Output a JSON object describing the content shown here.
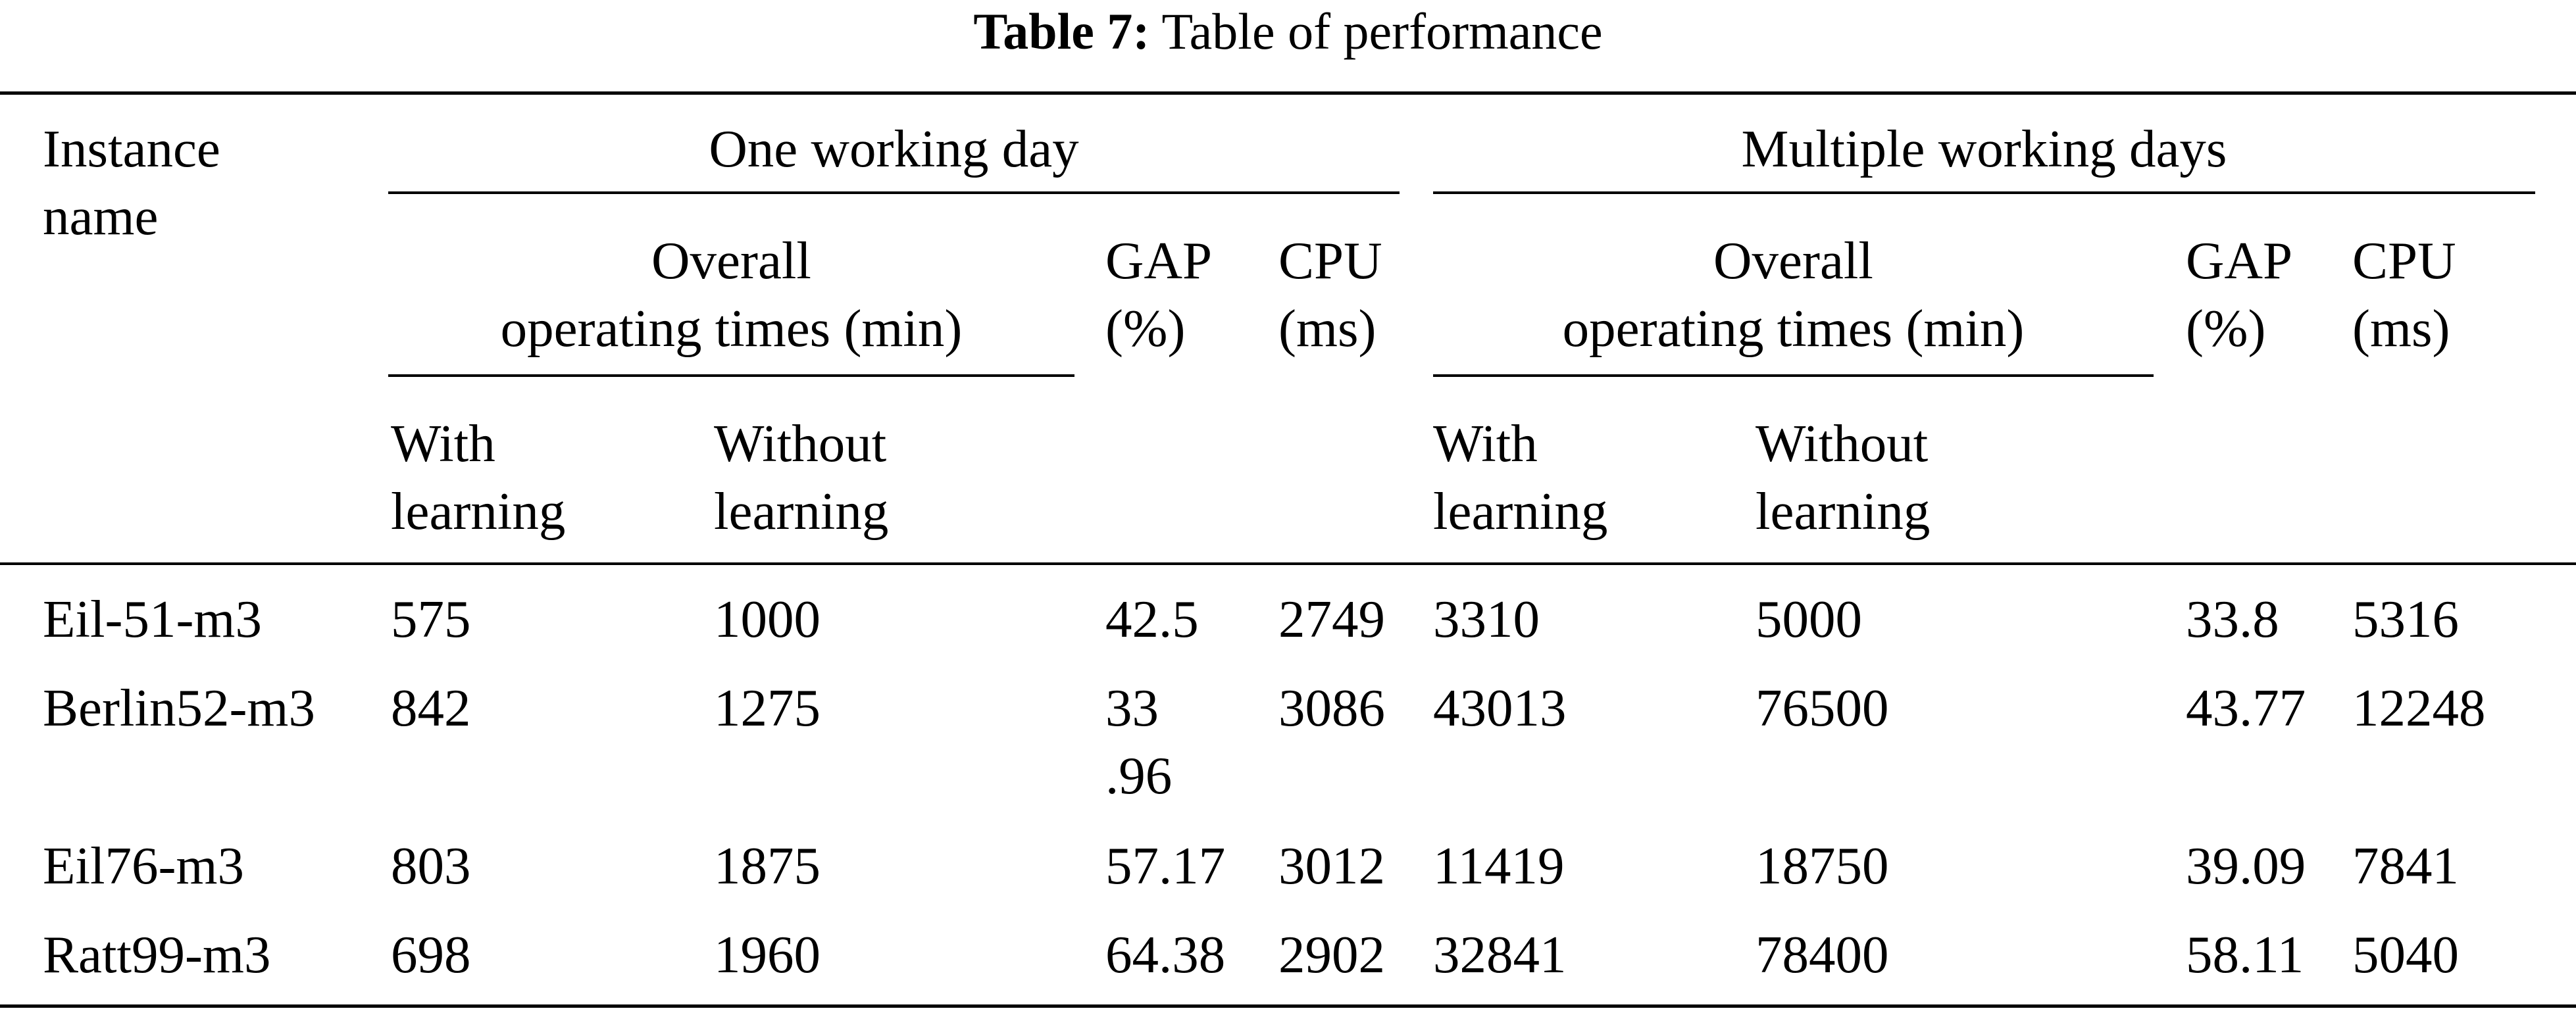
{
  "caption": {
    "label": "Table 7:",
    "text": "Table of performance"
  },
  "header": {
    "instance_name": [
      "Instance",
      "name"
    ],
    "group_one": "One working day",
    "group_multi": "Multiple working days",
    "overall": [
      "Overall",
      "operating times (min)"
    ],
    "gap": [
      "GAP",
      "(%)"
    ],
    "cpu": [
      "CPU",
      "(ms)"
    ],
    "with_learning": [
      "With",
      "learning"
    ],
    "without_learning": [
      "Without",
      "learning"
    ]
  },
  "rows": [
    {
      "name": "Eil-51-m3",
      "one": {
        "with": "575",
        "without": "1000",
        "gap": [
          "42.5"
        ],
        "cpu": "2749"
      },
      "multi": {
        "with": "3310",
        "without": "5000",
        "gap": "33.8",
        "cpu": "5316"
      }
    },
    {
      "name": "Berlin52-m3",
      "one": {
        "with": "842",
        "without": "1275",
        "gap": [
          "33",
          ".96"
        ],
        "cpu": "3086"
      },
      "multi": {
        "with": "43013",
        "without": "76500",
        "gap": "43.77",
        "cpu": "12248"
      }
    },
    {
      "name": "Eil76-m3",
      "one": {
        "with": "803",
        "without": "1875",
        "gap": [
          "57.17"
        ],
        "cpu": "3012"
      },
      "multi": {
        "with": "11419",
        "without": "18750",
        "gap": "39.09",
        "cpu": "7841"
      }
    },
    {
      "name": "Ratt99-m3",
      "one": {
        "with": "698",
        "without": "1960",
        "gap": [
          "64.38"
        ],
        "cpu": "2902"
      },
      "multi": {
        "with": "32841",
        "without": "78400",
        "gap": "58.11",
        "cpu": "5040"
      }
    }
  ]
}
